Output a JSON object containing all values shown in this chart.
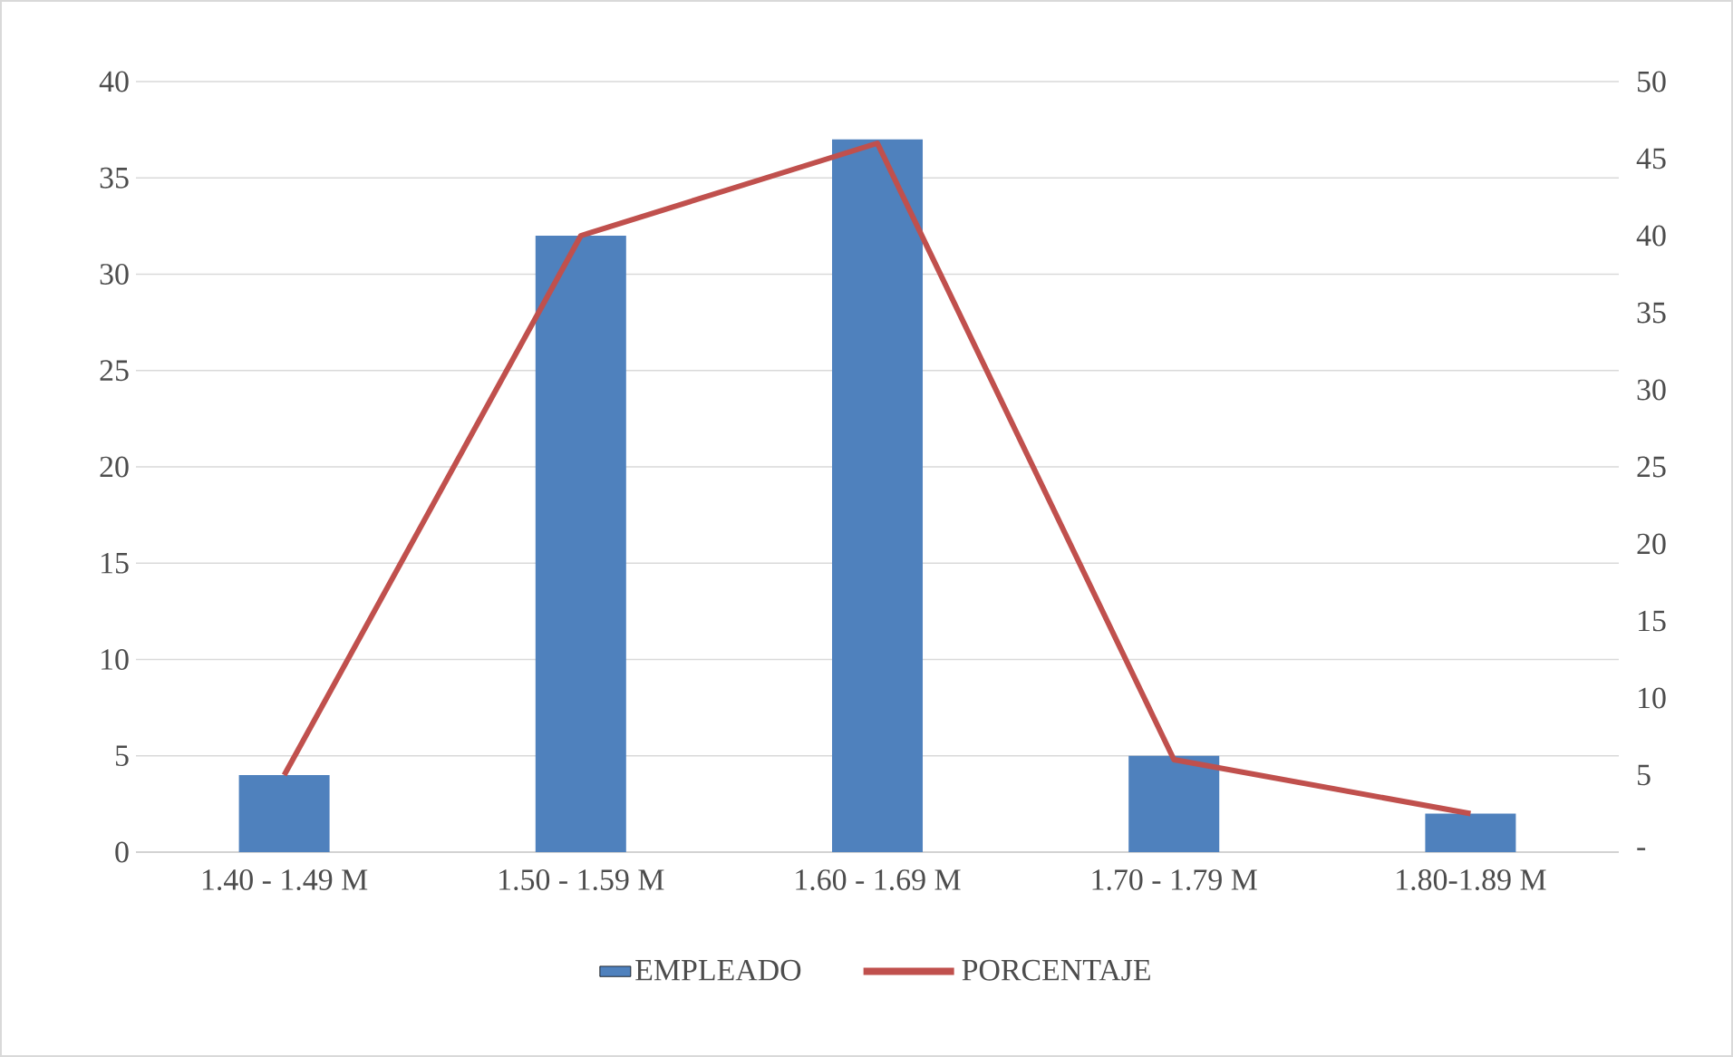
{
  "chart_data": {
    "type": "bar",
    "categories": [
      "1.40 - 1.49 M",
      "1.50 - 1.59 M",
      "1.60 - 1.69 M",
      "1.70 - 1.79 M",
      "1.80-1.89 M"
    ],
    "series": [
      {
        "name": "EMPLEADO",
        "color": "#4f81bd",
        "values": [
          4,
          32,
          37,
          5,
          2
        ]
      },
      {
        "name": "PORCENTAJE",
        "type": "line",
        "axis": "y2",
        "color": "#c0504d",
        "values": [
          5,
          40,
          46,
          6,
          2.5
        ]
      }
    ],
    "ylim": [
      0,
      40
    ],
    "yticks": [
      0,
      5,
      10,
      15,
      20,
      25,
      30,
      35,
      40
    ],
    "y2lim": [
      0,
      50
    ],
    "y2ticks": [
      {
        "value": 0,
        "label": "-"
      },
      5,
      10,
      15,
      20,
      25,
      30,
      35,
      40,
      45,
      50
    ],
    "grid": "y",
    "legend": "bottom"
  }
}
